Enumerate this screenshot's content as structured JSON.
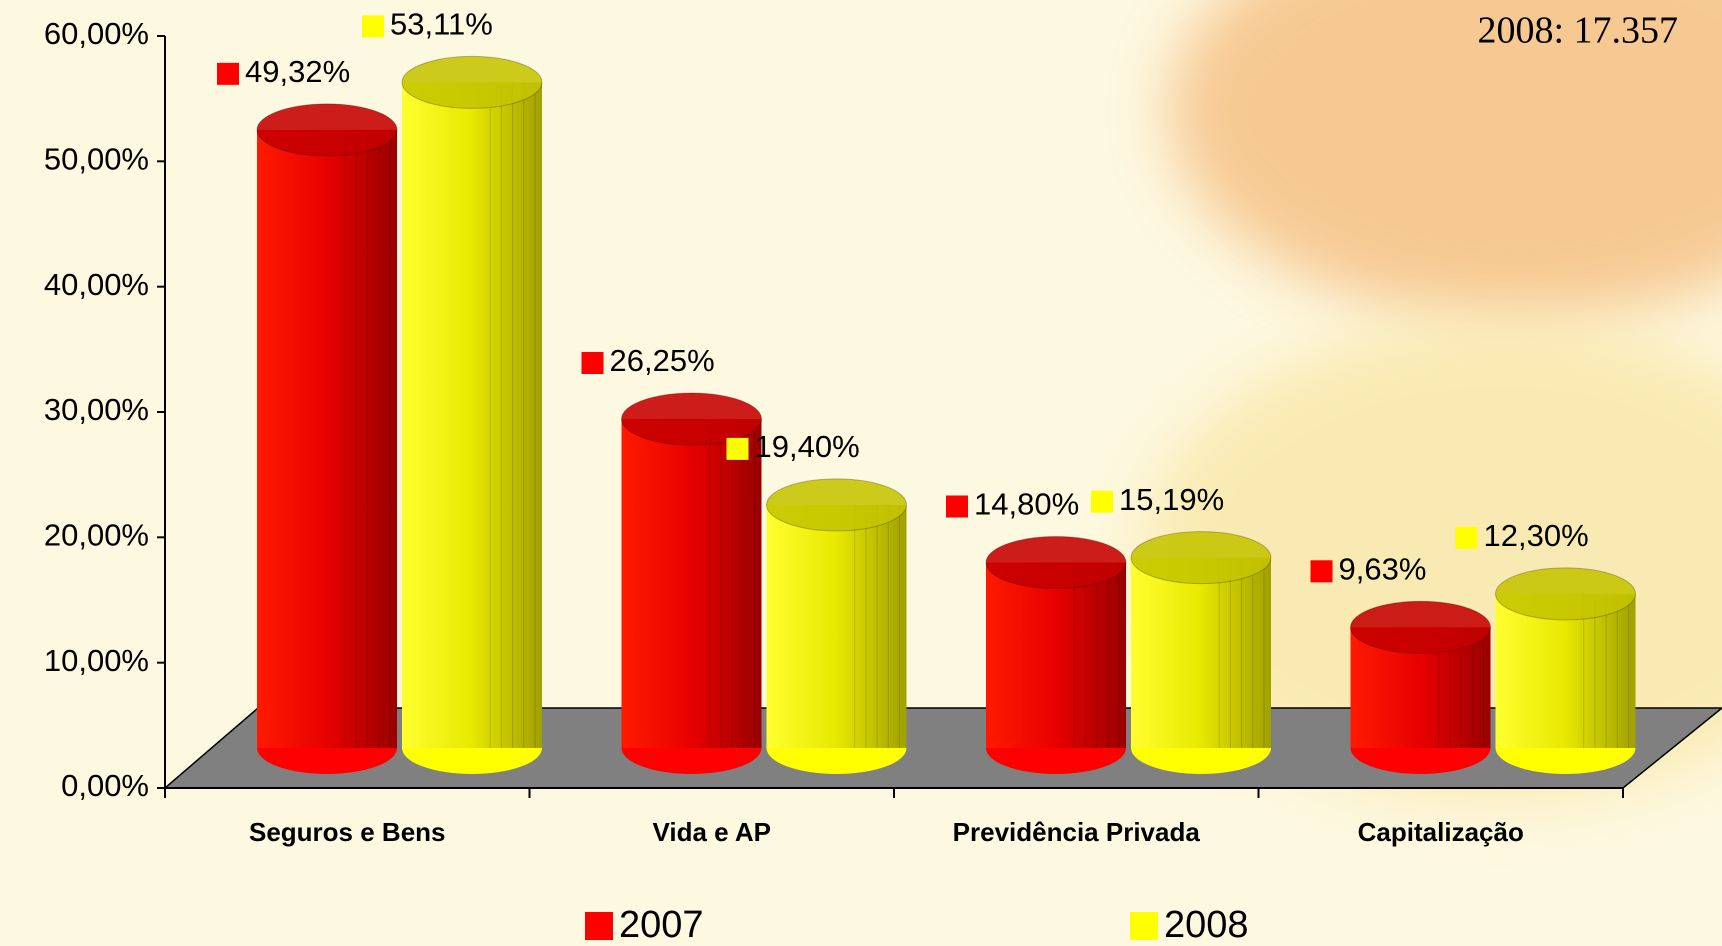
{
  "chart_data": {
    "type": "bar",
    "annotation": "2008: 17.357",
    "categories": [
      "Seguros e Bens",
      "Vida e AP",
      "Previdência Privada",
      "Capitalização"
    ],
    "series": [
      {
        "name": "2007",
        "color": "#ff0000",
        "values": [
          49.32,
          26.25,
          14.8,
          9.63
        ],
        "value_labels": [
          "49,32%",
          "26,25%",
          "14,80%",
          "9,63%"
        ]
      },
      {
        "name": "2008",
        "color": "#ffff00",
        "values": [
          53.11,
          19.4,
          15.19,
          12.3
        ],
        "value_labels": [
          "53,11%",
          "19,40%",
          "15,19%",
          "12,30%"
        ]
      }
    ],
    "ylim": [
      0,
      60
    ],
    "yticks": [
      {
        "value": 0,
        "label": "0,00%"
      },
      {
        "value": 10,
        "label": "10,00%"
      },
      {
        "value": 20,
        "label": "20,00%"
      },
      {
        "value": 30,
        "label": "30,00%"
      },
      {
        "value": 40,
        "label": "40,00%"
      },
      {
        "value": 50,
        "label": "50,00%"
      },
      {
        "value": 60,
        "label": "60,00%"
      }
    ],
    "grid": false
  }
}
